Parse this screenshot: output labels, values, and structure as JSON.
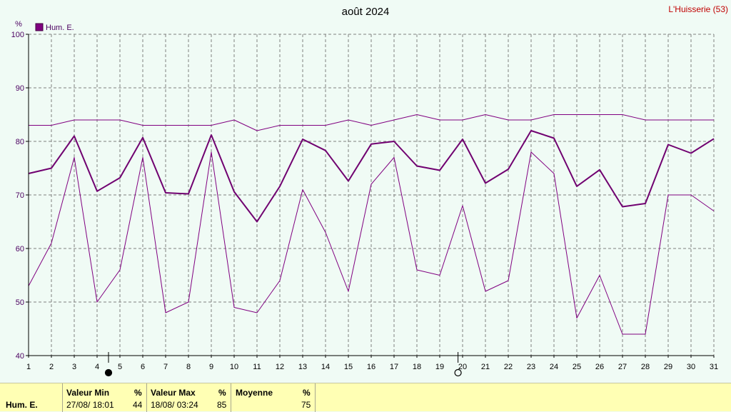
{
  "chart_data": {
    "type": "line",
    "title": "août 2024",
    "station": "L'Huisserie (53)",
    "ylabel": "%",
    "ylim": [
      40,
      100
    ],
    "yticks": [
      40,
      50,
      60,
      70,
      80,
      90,
      100
    ],
    "xlim": [
      1,
      31
    ],
    "x": [
      1,
      2,
      3,
      4,
      5,
      6,
      7,
      8,
      9,
      10,
      11,
      12,
      13,
      14,
      15,
      16,
      17,
      18,
      19,
      20,
      21,
      22,
      23,
      24,
      25,
      26,
      27,
      28,
      29,
      30,
      31
    ],
    "grid": true,
    "legend": "top-left",
    "series": [
      {
        "name": "Hum. E.",
        "role": "max",
        "color": "#800080",
        "values": [
          83,
          83,
          84,
          84,
          84,
          83,
          83,
          83,
          83,
          84,
          82,
          83,
          83,
          83,
          84,
          83,
          84,
          85,
          84,
          84,
          85,
          84,
          84,
          85,
          85,
          85,
          85,
          84,
          84,
          84,
          84
        ]
      },
      {
        "name": "Hum. E.",
        "role": "mean",
        "color": "#700070",
        "values": [
          74,
          75,
          81,
          70.7,
          73.2,
          80.7,
          70.4,
          70.2,
          81.2,
          70.6,
          65,
          71.6,
          80.4,
          78.3,
          72.6,
          79.5,
          80,
          75.4,
          74.6,
          80.4,
          72.2,
          74.8,
          82,
          80.6,
          71.6,
          74.7,
          67.8,
          68.4,
          79.4,
          77.8,
          80.5
        ]
      },
      {
        "name": "Hum. E.",
        "role": "min",
        "color": "#800080",
        "values": [
          53,
          61,
          77,
          50,
          56,
          77,
          48,
          50,
          78,
          49,
          48,
          54,
          71,
          63,
          52,
          72,
          77,
          56,
          55,
          68,
          52,
          54,
          78,
          74,
          47,
          55,
          44,
          44,
          70,
          70,
          67
        ]
      }
    ],
    "moon_markers": [
      {
        "x": 4.5,
        "phase": "full"
      },
      {
        "x": 19.8,
        "phase": "new"
      }
    ]
  },
  "colors": {
    "series": "#800080",
    "grid": "#808080",
    "footer_bg": "#ffffb4",
    "station": "#c00000",
    "plot_bg": "#f0fbf5"
  },
  "footer": {
    "row_label": "Hum. E.",
    "min": {
      "header": "Valeur Min",
      "unit": "%",
      "datetime": "27/08/  18:01",
      "value": "44"
    },
    "max": {
      "header": "Valeur Max",
      "unit": "%",
      "datetime": "18/08/  03:24",
      "value": "85"
    },
    "mean": {
      "header": "Moyenne",
      "unit": "%",
      "value": "75"
    }
  }
}
